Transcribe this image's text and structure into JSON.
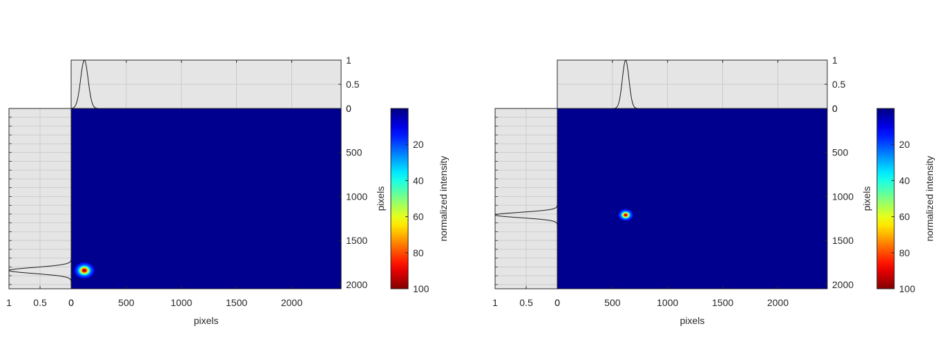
{
  "chart_data": [
    {
      "type": "heatmap",
      "title": "",
      "xlabel": "pixels",
      "ylabel": "pixels",
      "xlim": [
        0,
        2448
      ],
      "ylim": [
        0,
        2048
      ],
      "x_ticks": [
        0,
        500,
        1000,
        1500,
        2000
      ],
      "y_ticks": [
        0,
        500,
        1000,
        1500,
        2000
      ],
      "y_reversed": true,
      "spot": {
        "x": 120,
        "y": 1840,
        "sigma": 30
      },
      "top_profile": {
        "ylim": [
          0,
          1
        ],
        "ticks": [
          0,
          0.5,
          1
        ],
        "peak_x": 120,
        "sigma": 34
      },
      "left_profile": {
        "xlim": [
          1,
          0
        ],
        "ticks": [
          1,
          0.5,
          0
        ],
        "peak_y": 1840,
        "sigma": 34
      },
      "colorbar": {
        "label": "normalized intensity",
        "ticks": [
          20,
          40,
          60,
          80,
          100
        ],
        "range": [
          0,
          100
        ],
        "colormap": "jet",
        "reversed": true
      },
      "background_color": "#00008f",
      "profile_background": "#e5e5e5"
    },
    {
      "type": "heatmap",
      "title": "",
      "xlabel": "pixels",
      "ylabel": "pixels",
      "xlim": [
        0,
        2448
      ],
      "ylim": [
        0,
        2048
      ],
      "x_ticks": [
        0,
        500,
        1000,
        1500,
        2000
      ],
      "y_ticks": [
        0,
        500,
        1000,
        1500,
        2000
      ],
      "y_reversed": true,
      "spot": {
        "x": 620,
        "y": 1210,
        "sigma": 22
      },
      "top_profile": {
        "ylim": [
          0,
          1
        ],
        "ticks": [
          0,
          0.5,
          1
        ],
        "peak_x": 620,
        "sigma": 30
      },
      "left_profile": {
        "xlim": [
          1,
          0
        ],
        "ticks": [
          1,
          0.5,
          0
        ],
        "peak_y": 1210,
        "sigma": 30
      },
      "colorbar": {
        "label": "normalized intensity",
        "ticks": [
          20,
          40,
          60,
          80,
          100
        ],
        "range": [
          0,
          100
        ],
        "colormap": "jet",
        "reversed": true
      },
      "background_color": "#00008f",
      "profile_background": "#e5e5e5"
    }
  ]
}
